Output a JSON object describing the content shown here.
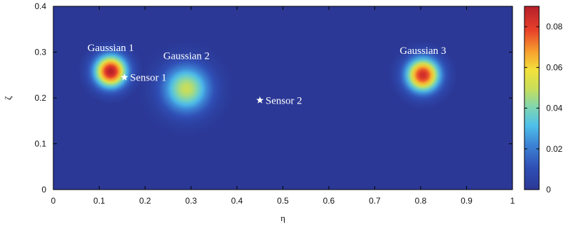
{
  "chart_data": {
    "type": "heatmap",
    "title": "",
    "xlabel": "η",
    "ylabel": "ζ",
    "xlim": [
      0,
      1
    ],
    "ylim": [
      0,
      0.4
    ],
    "x_ticks": [
      "0",
      "0.1",
      "0.2",
      "0.3",
      "0.4",
      "0.5",
      "0.6",
      "0.7",
      "0.8",
      "0.9",
      "1"
    ],
    "y_ticks": [
      "0",
      "0.1",
      "0.2",
      "0.3",
      "0.4"
    ],
    "colorbar": {
      "range": [
        0,
        0.09
      ],
      "ticks": [
        "0",
        "0.02",
        "0.04",
        "0.06",
        "0.08"
      ],
      "colormap": "jet"
    },
    "sources": [
      {
        "label": "Gaussian 1",
        "x": 0.125,
        "y": 0.258,
        "peak": 0.09,
        "sigma": 0.024
      },
      {
        "label": "Gaussian 2",
        "x": 0.29,
        "y": 0.22,
        "peak": 0.05,
        "sigma": 0.035
      },
      {
        "label": "Gaussian 3",
        "x": 0.805,
        "y": 0.25,
        "peak": 0.085,
        "sigma": 0.025
      }
    ],
    "sensors": [
      {
        "label": "Sensor 1",
        "x": 0.155,
        "y": 0.245
      },
      {
        "label": "Sensor 2",
        "x": 0.45,
        "y": 0.195
      }
    ],
    "colors": {
      "background": "#2b3896",
      "marker": "#ffffff",
      "annotation": "#ffffff"
    }
  }
}
